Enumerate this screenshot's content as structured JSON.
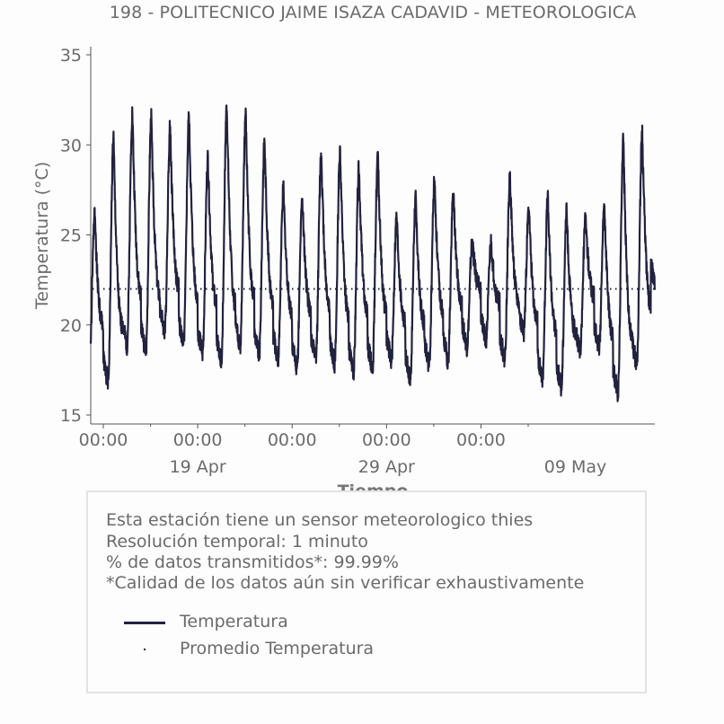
{
  "chart_data": {
    "type": "line",
    "title": "198 - POLITECNICO JAIME ISAZA CADAVID - METEOROLOGICA",
    "xlabel": "Tiempo",
    "ylabel": "Temperatura (°C)",
    "ylim": [
      15,
      35
    ],
    "yticks": [
      15,
      20,
      25,
      30,
      35
    ],
    "xlim": [
      "2024-04-13T08:00",
      "2024-05-13T05:00"
    ],
    "x_tick_labels": [
      {
        "x": "2024-04-14T00:00",
        "label": "00:00"
      },
      {
        "x": "2024-04-19T00:00",
        "label": "00:00"
      },
      {
        "x": "2024-04-24T00:00",
        "label": "00:00"
      },
      {
        "x": "2024-04-29T00:00",
        "label": "00:00"
      },
      {
        "x": "2024-05-04T00:00",
        "label": "00:00"
      }
    ],
    "x_date_labels": [
      {
        "x": "2024-04-19T00:00",
        "label": "19 Apr"
      },
      {
        "x": "2024-04-29T00:00",
        "label": "29 Apr"
      },
      {
        "x": "2024-05-09T00:00",
        "label": "09 May"
      }
    ],
    "series": [
      {
        "name": "Temperatura",
        "style": "line",
        "color": "#22223f",
        "daily": [
          {
            "date": "2024-04-13",
            "min": 17.0,
            "max": 26.2
          },
          {
            "date": "2024-04-14",
            "min": 16.8,
            "max": 30.4
          },
          {
            "date": "2024-04-15",
            "min": 18.8,
            "max": 31.8
          },
          {
            "date": "2024-04-16",
            "min": 18.5,
            "max": 31.5
          },
          {
            "date": "2024-04-17",
            "min": 19.6,
            "max": 31.0
          },
          {
            "date": "2024-04-18",
            "min": 18.9,
            "max": 31.6
          },
          {
            "date": "2024-04-19",
            "min": 18.4,
            "max": 29.3
          },
          {
            "date": "2024-04-20",
            "min": 18.0,
            "max": 32.2
          },
          {
            "date": "2024-04-21",
            "min": 18.8,
            "max": 31.7
          },
          {
            "date": "2024-04-22",
            "min": 18.3,
            "max": 30.2
          },
          {
            "date": "2024-04-23",
            "min": 18.1,
            "max": 27.5
          },
          {
            "date": "2024-04-24",
            "min": 17.6,
            "max": 27.0
          },
          {
            "date": "2024-04-25",
            "min": 18.0,
            "max": 29.6
          },
          {
            "date": "2024-04-26",
            "min": 17.8,
            "max": 29.7
          },
          {
            "date": "2024-04-27",
            "min": 17.4,
            "max": 28.7
          },
          {
            "date": "2024-04-28",
            "min": 17.6,
            "max": 29.3
          },
          {
            "date": "2024-04-29",
            "min": 18.0,
            "max": 26.0
          },
          {
            "date": "2024-04-30",
            "min": 17.0,
            "max": 27.0
          },
          {
            "date": "2024-05-01",
            "min": 17.7,
            "max": 28.0
          },
          {
            "date": "2024-05-02",
            "min": 18.0,
            "max": 27.3
          },
          {
            "date": "2024-05-03",
            "min": 18.8,
            "max": 24.6
          },
          {
            "date": "2024-05-04",
            "min": 19.1,
            "max": 24.6
          },
          {
            "date": "2024-05-05",
            "min": 18.1,
            "max": 28.2
          },
          {
            "date": "2024-05-06",
            "min": 19.5,
            "max": 26.5
          },
          {
            "date": "2024-05-07",
            "min": 17.0,
            "max": 27.0
          },
          {
            "date": "2024-05-08",
            "min": 16.5,
            "max": 26.3
          },
          {
            "date": "2024-05-09",
            "min": 18.5,
            "max": 25.9
          },
          {
            "date": "2024-05-10",
            "min": 18.7,
            "max": 26.5
          },
          {
            "date": "2024-05-11",
            "min": 16.2,
            "max": 30.4
          },
          {
            "date": "2024-05-12",
            "min": 17.8,
            "max": 30.8
          },
          {
            "date": "2024-05-13",
            "min": 22.0,
            "max": 22.0
          }
        ]
      },
      {
        "name": "Promedio Temperatura",
        "style": "dotted",
        "color": "#22223f",
        "value": 22.0
      }
    ],
    "grid": false
  },
  "info": {
    "line1": "Esta estación tiene un sensor meteorologico thies",
    "line2": "Resolución temporal: 1 minuto",
    "line3": "% de datos transmitidos*: 99.99%",
    "line4": "*Calidad de los datos aún sin verificar exhaustivamente"
  },
  "legend": {
    "item1": "Temperatura",
    "item2": "Promedio Temperatura"
  },
  "colors": {
    "series": "#22223f",
    "text": "#6b6b6b",
    "axis": "#555555",
    "box_border": "#e3e3e3"
  }
}
